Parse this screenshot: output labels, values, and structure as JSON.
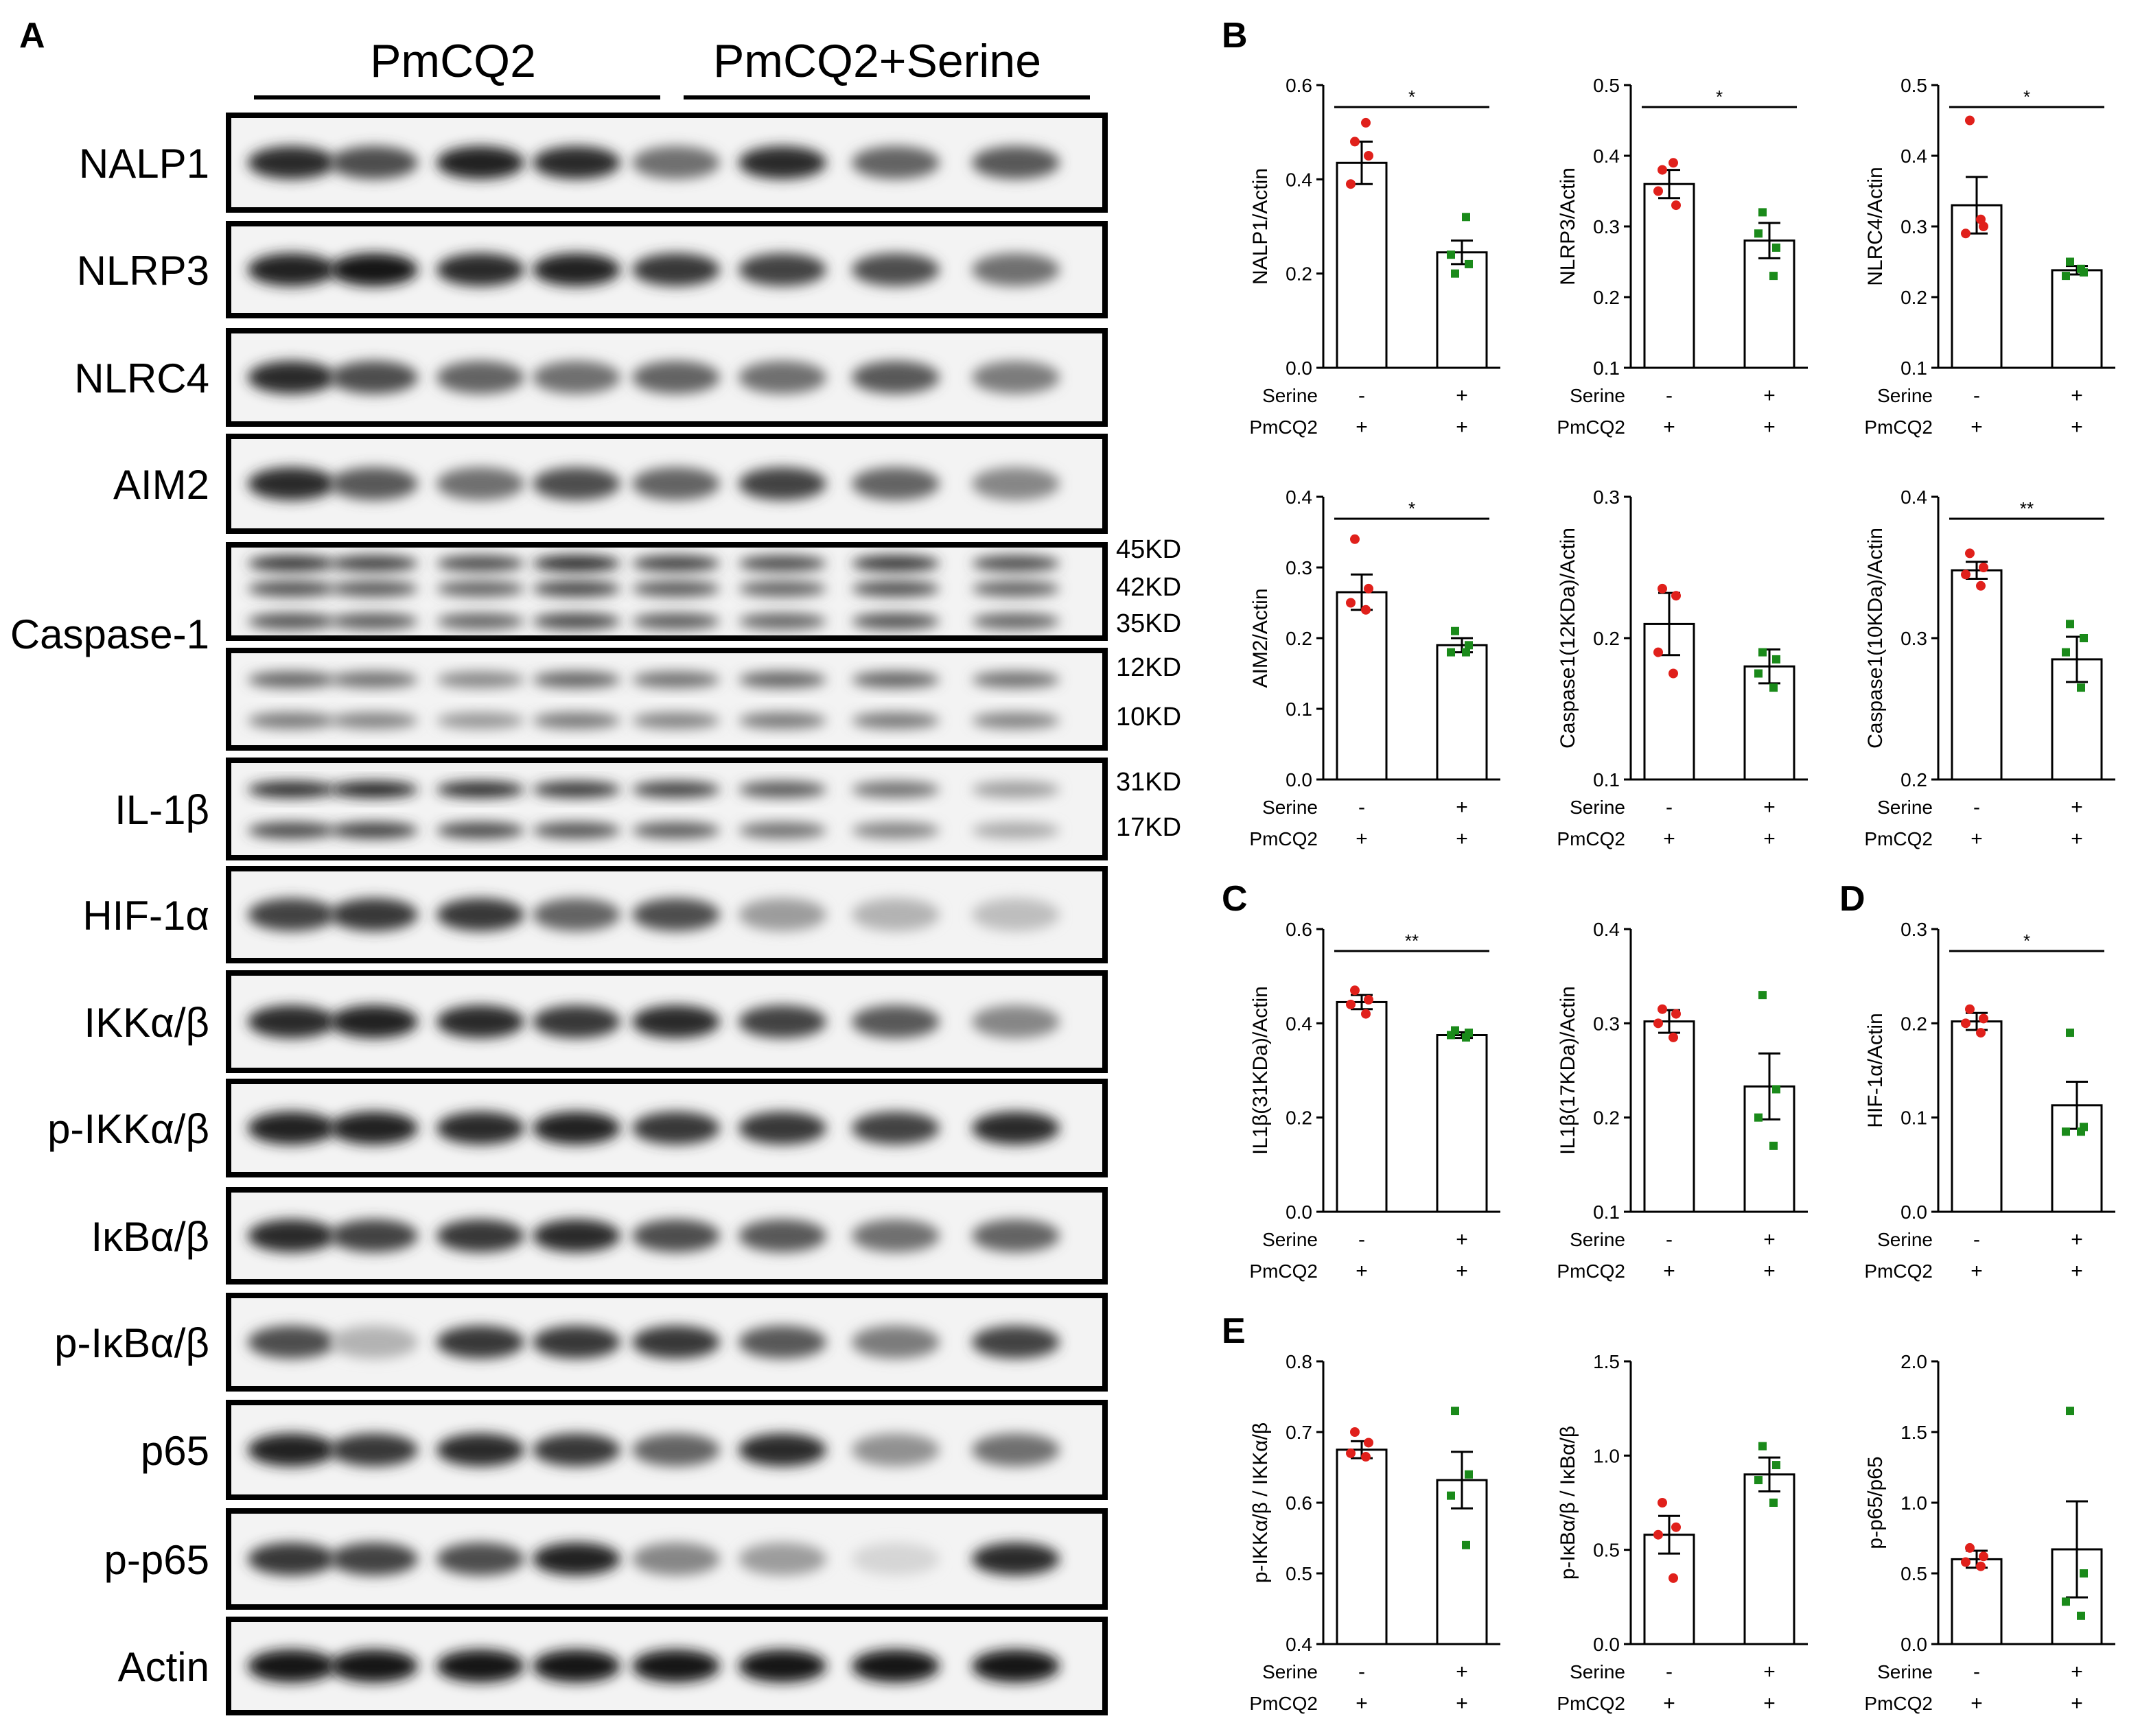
{
  "panels": {
    "A": "A",
    "B": "B",
    "C": "C",
    "D": "D",
    "E": "E"
  },
  "blot": {
    "groups": [
      "PmCQ2",
      "PmCQ2+Serine"
    ],
    "bands": [
      {
        "label": "NALP1",
        "kda": [],
        "n": 1,
        "intensities": [
          0.85,
          0.7,
          0.9,
          0.85,
          0.55,
          0.85,
          0.6,
          0.65
        ]
      },
      {
        "label": "NLRP3",
        "kda": [],
        "n": 1,
        "intensities": [
          0.9,
          0.95,
          0.85,
          0.9,
          0.8,
          0.75,
          0.7,
          0.55
        ]
      },
      {
        "label": "NLRC4",
        "kda": [],
        "n": 1,
        "intensities": [
          0.85,
          0.7,
          0.6,
          0.55,
          0.6,
          0.55,
          0.65,
          0.5
        ]
      },
      {
        "label": "AIM2",
        "kda": [],
        "n": 1,
        "intensities": [
          0.85,
          0.65,
          0.55,
          0.7,
          0.6,
          0.75,
          0.6,
          0.45
        ]
      },
      {
        "label": "Caspase-1",
        "kda": [
          "45KDa",
          "42KDa",
          "35KDa"
        ],
        "n": 3,
        "intensities": [
          0.8,
          0.75,
          0.7,
          0.85,
          0.75,
          0.7,
          0.8,
          0.7
        ]
      },
      {
        "label": "",
        "kda": [
          "12KDa",
          "10KDa"
        ],
        "n": 2,
        "intensities": [
          0.6,
          0.55,
          0.45,
          0.6,
          0.55,
          0.6,
          0.6,
          0.55
        ]
      },
      {
        "label": "IL-1β",
        "kda": [
          "31KDa",
          "17KDa"
        ],
        "n": 2,
        "intensities": [
          0.85,
          0.9,
          0.85,
          0.8,
          0.75,
          0.65,
          0.55,
          0.35
        ]
      },
      {
        "label": "HIF-1α",
        "kda": [],
        "n": 1,
        "intensities": [
          0.75,
          0.8,
          0.8,
          0.6,
          0.7,
          0.35,
          0.25,
          0.2
        ]
      },
      {
        "label": "IKKα/β",
        "kda": [],
        "n": 1,
        "intensities": [
          0.85,
          0.9,
          0.85,
          0.8,
          0.85,
          0.75,
          0.65,
          0.45
        ]
      },
      {
        "label": "p-IKKα/β",
        "kda": [],
        "n": 1,
        "intensities": [
          0.9,
          0.9,
          0.85,
          0.9,
          0.8,
          0.8,
          0.75,
          0.85
        ]
      },
      {
        "label": "IκBα/β",
        "kda": [],
        "n": 1,
        "intensities": [
          0.85,
          0.75,
          0.8,
          0.85,
          0.7,
          0.65,
          0.55,
          0.6
        ]
      },
      {
        "label": "p-IκBα/β",
        "kda": [],
        "n": 1,
        "intensities": [
          0.7,
          0.25,
          0.8,
          0.8,
          0.8,
          0.65,
          0.5,
          0.75
        ]
      },
      {
        "label": "p65",
        "kda": [],
        "n": 1,
        "intensities": [
          0.9,
          0.8,
          0.85,
          0.8,
          0.6,
          0.85,
          0.4,
          0.55
        ]
      },
      {
        "label": "p-p65",
        "kda": [],
        "n": 1,
        "intensities": [
          0.8,
          0.75,
          0.7,
          0.9,
          0.45,
          0.35,
          0.1,
          0.85
        ]
      },
      {
        "label": "Actin",
        "kda": [],
        "n": 1,
        "intensities": [
          0.95,
          0.95,
          0.95,
          0.95,
          0.95,
          0.95,
          0.95,
          0.95
        ]
      }
    ]
  },
  "conditions": {
    "rows": [
      {
        "label": "Serine",
        "values": [
          "-",
          "+"
        ]
      },
      {
        "label": "PmCQ2",
        "values": [
          "+",
          "+"
        ]
      }
    ]
  },
  "chart_data": [
    {
      "panel": "B",
      "type": "bar",
      "ylabel": "NALP1/Actin",
      "ylim": [
        0,
        0.6
      ],
      "yticks": [
        "0.0",
        "0.2",
        "0.4",
        "0.6"
      ],
      "values": [
        0.435,
        0.245
      ],
      "errors": [
        0.045,
        0.025
      ],
      "points": [
        [
          0.48,
          0.45,
          0.39,
          0.52
        ],
        [
          0.2,
          0.22,
          0.24,
          0.32
        ]
      ],
      "significance": "*"
    },
    {
      "panel": "B",
      "type": "bar",
      "ylabel": "NLRP3/Actin",
      "ylim": [
        0.1,
        0.5
      ],
      "yticks": [
        "0.1",
        "0.2",
        "0.3",
        "0.4",
        "0.5"
      ],
      "values": [
        0.36,
        0.28
      ],
      "errors": [
        0.02,
        0.025
      ],
      "points": [
        [
          0.38,
          0.33,
          0.35,
          0.39
        ],
        [
          0.32,
          0.27,
          0.29,
          0.23
        ]
      ],
      "significance": "*"
    },
    {
      "panel": "B",
      "type": "bar",
      "ylabel": "NLRC4/Actin",
      "ylim": [
        0.1,
        0.5
      ],
      "yticks": [
        "0.1",
        "0.2",
        "0.3",
        "0.4",
        "0.5"
      ],
      "values": [
        0.33,
        0.238
      ],
      "errors": [
        0.04,
        0.006
      ],
      "points": [
        [
          0.45,
          0.3,
          0.29,
          0.31
        ],
        [
          0.25,
          0.235,
          0.23,
          0.24
        ]
      ],
      "significance": "*"
    },
    {
      "panel": "B",
      "type": "bar",
      "ylabel": "AIM2/Actin",
      "ylim": [
        0,
        0.4
      ],
      "yticks": [
        "0.0",
        "0.1",
        "0.2",
        "0.3",
        "0.4"
      ],
      "values": [
        0.265,
        0.19
      ],
      "errors": [
        0.025,
        0.01
      ],
      "points": [
        [
          0.34,
          0.27,
          0.25,
          0.24
        ],
        [
          0.21,
          0.19,
          0.18,
          0.18
        ]
      ],
      "significance": "*"
    },
    {
      "panel": "B",
      "type": "bar",
      "ylabel": "Caspase1(12KDa)/Actin",
      "ylim": [
        0.1,
        0.3
      ],
      "yticks": [
        "0.1",
        "0.2",
        "0.3"
      ],
      "values": [
        0.21,
        0.18
      ],
      "errors": [
        0.022,
        0.012
      ],
      "points": [
        [
          0.235,
          0.23,
          0.19,
          0.175
        ],
        [
          0.19,
          0.185,
          0.175,
          0.165
        ]
      ],
      "significance": ""
    },
    {
      "panel": "B",
      "type": "bar",
      "ylabel": "Caspase1(10KDa)/Actin",
      "ylim": [
        0.2,
        0.4
      ],
      "yticks": [
        "0.2",
        "0.3",
        "0.4"
      ],
      "values": [
        0.348,
        0.285
      ],
      "errors": [
        0.006,
        0.016
      ],
      "points": [
        [
          0.36,
          0.35,
          0.345,
          0.337
        ],
        [
          0.31,
          0.3,
          0.29,
          0.265
        ]
      ],
      "significance": "**"
    },
    {
      "panel": "C",
      "type": "bar",
      "ylabel": "IL1β(31KDa)/Actin",
      "ylim": [
        0,
        0.6
      ],
      "yticks": [
        "0.0",
        "0.2",
        "0.4",
        "0.6"
      ],
      "values": [
        0.445,
        0.375
      ],
      "errors": [
        0.015,
        0.006
      ],
      "points": [
        [
          0.47,
          0.45,
          0.44,
          0.42
        ],
        [
          0.385,
          0.38,
          0.375,
          0.37
        ]
      ],
      "significance": "**"
    },
    {
      "panel": "C",
      "type": "bar",
      "ylabel": "IL1β(17KDa)/Actin",
      "ylim": [
        0.1,
        0.4
      ],
      "yticks": [
        "0.1",
        "0.2",
        "0.3",
        "0.4"
      ],
      "values": [
        0.302,
        0.233
      ],
      "errors": [
        0.012,
        0.035
      ],
      "points": [
        [
          0.315,
          0.31,
          0.3,
          0.285
        ],
        [
          0.33,
          0.23,
          0.2,
          0.17
        ]
      ],
      "significance": ""
    },
    {
      "panel": "D",
      "type": "bar",
      "ylabel": "HIF-1α/Actin",
      "ylim": [
        0,
        0.3
      ],
      "yticks": [
        "0.0",
        "0.1",
        "0.2",
        "0.3"
      ],
      "values": [
        0.202,
        0.113
      ],
      "errors": [
        0.009,
        0.025
      ],
      "points": [
        [
          0.215,
          0.205,
          0.2,
          0.19
        ],
        [
          0.19,
          0.09,
          0.085,
          0.085
        ]
      ],
      "significance": "*"
    },
    {
      "panel": "E",
      "type": "bar",
      "ylabel": "p-IKKα/β / IKKα/β",
      "ylim": [
        0.4,
        0.8
      ],
      "yticks": [
        "0.4",
        "0.5",
        "0.6",
        "0.7",
        "0.8"
      ],
      "values": [
        0.675,
        0.632
      ],
      "errors": [
        0.012,
        0.04
      ],
      "points": [
        [
          0.7,
          0.685,
          0.67,
          0.665
        ],
        [
          0.73,
          0.64,
          0.61,
          0.54
        ]
      ],
      "significance": ""
    },
    {
      "panel": "E",
      "type": "bar",
      "ylabel": "p-IκBα/β / IκBα/β",
      "ylim": [
        0,
        1.5
      ],
      "yticks": [
        "0.0",
        "0.5",
        "1.0",
        "1.5"
      ],
      "values": [
        0.58,
        0.9
      ],
      "errors": [
        0.1,
        0.09
      ],
      "points": [
        [
          0.75,
          0.62,
          0.58,
          0.35
        ],
        [
          1.05,
          0.95,
          0.87,
          0.75
        ]
      ],
      "significance": ""
    },
    {
      "panel": "E",
      "type": "bar",
      "ylabel": "p-p65/p65",
      "ylim": [
        0,
        2
      ],
      "yticks": [
        "0.0",
        "0.5",
        "1.0",
        "1.5",
        "2.0"
      ],
      "values": [
        0.6,
        0.67
      ],
      "errors": [
        0.06,
        0.34
      ],
      "points": [
        [
          0.68,
          0.62,
          0.58,
          0.55
        ],
        [
          1.65,
          0.5,
          0.3,
          0.2
        ]
      ],
      "significance": ""
    }
  ]
}
